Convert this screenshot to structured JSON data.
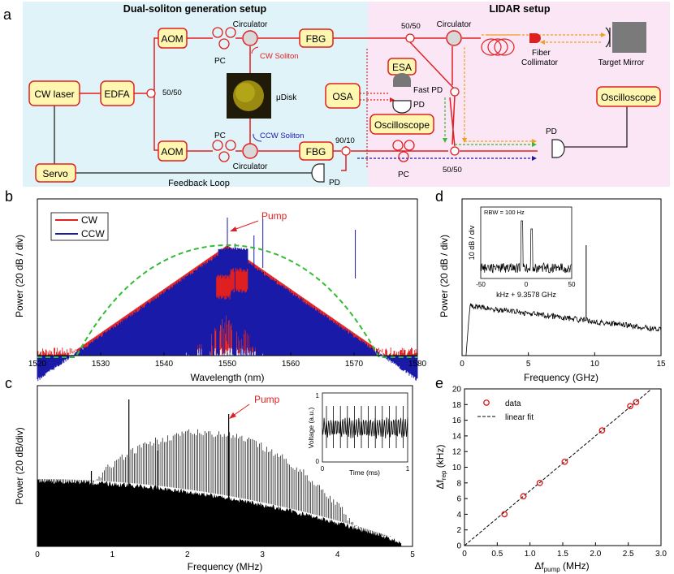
{
  "panel_labels": {
    "a": "a",
    "b": "b",
    "c": "c",
    "d": "d",
    "e": "e"
  },
  "setup": {
    "left_title": "Dual-soliton generation setup",
    "right_title": "LIDAR setup",
    "cw_laser": "CW laser",
    "edfa": "EDFA",
    "split_5050_left": "50/50",
    "aom_top": "AOM",
    "aom_bottom": "AOM",
    "pc_top": "PC",
    "pc_bottom": "PC",
    "pc_lidar": "PC",
    "circulator_top": "Circulator",
    "circulator_bottom": "Circulator",
    "circulator_lidar": "Circulator",
    "fbg_top": "FBG",
    "fbg_bottom": "FBG",
    "cw_soliton": "CW Soliton",
    "ccw_soliton": "CCW Soliton",
    "udisk": "μDisk",
    "osa": "OSA",
    "esa": "ESA",
    "fast_pd": "Fast PD",
    "pd_mid": "PD",
    "oscilloscope_mid": "Oscilloscope",
    "oscilloscope_right": "Oscilloscope",
    "split_9010": "90/10",
    "split_5050_top": "50/50",
    "split_5050_bottom": "50/50",
    "fiber_collimator_1": "Fiber",
    "fiber_collimator_2": "Collimator",
    "target_mirror": "Target Mirror",
    "servo": "Servo",
    "feedback_loop": "Feedback Loop",
    "pd_feedback": "PD",
    "pd_right": "PD"
  },
  "colors": {
    "red": "#e02020",
    "blue": "#1a1aa8",
    "green": "#33bb33",
    "orange": "#f0a020",
    "left_bg": "#dff3f8",
    "right_bg": "#fbe6f6"
  },
  "chart_data": [
    {
      "id": "b",
      "type": "line",
      "title": "",
      "xlabel": "Wavelength (nm)",
      "ylabel": "Power (20 dB / div)",
      "xlim": [
        1520,
        1580
      ],
      "xticks": [
        "1520",
        "1530",
        "1540",
        "1550",
        "1560",
        "1570",
        "1580"
      ],
      "annotation": "Pump",
      "series": [
        {
          "name": "CW",
          "color": "#e02020"
        },
        {
          "name": "CCW",
          "color": "#1a1aa8"
        }
      ],
      "fit": {
        "style": "dashed",
        "color": "#33bb33",
        "peak_x": 1550
      }
    },
    {
      "id": "c",
      "type": "line",
      "xlabel": "Frequency (MHz)",
      "ylabel": "Power (20 dB/div)",
      "xlim": [
        0,
        5
      ],
      "xticks": [
        "0",
        "1",
        "2",
        "3",
        "4",
        "5"
      ],
      "annotation": "Pump",
      "inset": {
        "xlabel": "Time (ms)",
        "ylabel": "Voltage (a.u.)",
        "xticks": [
          "0",
          "1"
        ],
        "yticks": [
          "0",
          "1"
        ]
      }
    },
    {
      "id": "d",
      "type": "line",
      "xlabel": "Frequency (GHz)",
      "ylabel": "Power (20 dB / div)",
      "xlim": [
        0,
        15
      ],
      "xticks": [
        "0",
        "5",
        "10",
        "15"
      ],
      "peak_x": 9.3578,
      "inset": {
        "rbw": "RBW = 100 Hz",
        "ylabel": "10 dB / div",
        "xlabel": "kHz + 9.3578 GHz",
        "xticks": [
          "-50",
          "0",
          "50"
        ]
      }
    },
    {
      "id": "e",
      "type": "scatter",
      "xlabel": "Δf_pump (MHz)",
      "xlabel_main": "Δf",
      "xlabel_sub": "pump",
      "xlabel_unit": " (MHz)",
      "ylabel_main": "Δf",
      "ylabel_sub": "rep",
      "ylabel_unit": " (kHz)",
      "xlim": [
        0,
        3.0
      ],
      "ylim": [
        0,
        20
      ],
      "xticks": [
        "0",
        "0.5",
        "1.0",
        "1.5",
        "2.0",
        "2.5",
        "3.0"
      ],
      "yticks": [
        "0",
        "2",
        "4",
        "6",
        "8",
        "10",
        "12",
        "14",
        "16",
        "18",
        "20"
      ],
      "legend": [
        "data",
        "linear fit"
      ],
      "data": [
        [
          0.61,
          4.0
        ],
        [
          0.9,
          6.3
        ],
        [
          1.15,
          8.0
        ],
        [
          1.53,
          10.7
        ],
        [
          2.1,
          14.7
        ],
        [
          2.53,
          17.8
        ],
        [
          2.62,
          18.3
        ]
      ],
      "fit_slope": 7.0
    }
  ]
}
